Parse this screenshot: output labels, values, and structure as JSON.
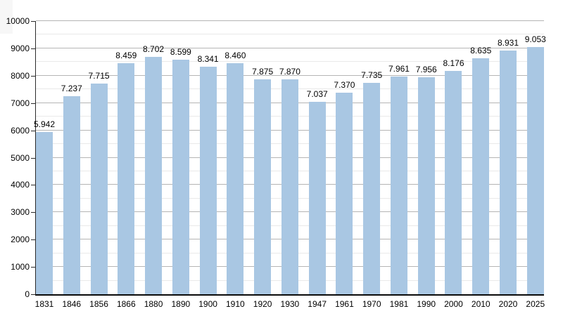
{
  "chart_data": {
    "type": "bar",
    "title": "",
    "xlabel": "",
    "ylabel": "",
    "categories": [
      "1831",
      "1846",
      "1856",
      "1866",
      "1880",
      "1890",
      "1900",
      "1910",
      "1920",
      "1930",
      "1947",
      "1961",
      "1970",
      "1981",
      "1990",
      "2000",
      "2010",
      "2020",
      "2025"
    ],
    "values": [
      5942,
      7237,
      7715,
      8459,
      8702,
      8599,
      8341,
      8460,
      7875,
      7870,
      7037,
      7370,
      7735,
      7961,
      7956,
      8176,
      8635,
      8931,
      9053
    ],
    "value_labels": [
      "5.942",
      "7.237",
      "7.715",
      "8.459",
      "8.702",
      "8.599",
      "8.341",
      "8.460",
      "7.875",
      "7.870",
      "7.037",
      "7.370",
      "7.735",
      "7.961",
      "7.956",
      "8.176",
      "8.635",
      "8.931",
      "9.053"
    ],
    "ylim": [
      0,
      10000
    ],
    "y_major_step": 1000,
    "y_minor_step": 500,
    "y_tick_labels": [
      "0",
      "1000",
      "2000",
      "3000",
      "4000",
      "5000",
      "6000",
      "7000",
      "8000",
      "9000",
      "10000"
    ],
    "grid": true,
    "legend": "none",
    "bar_color": "#a9c7e3",
    "major_grid_color": "#b5b5b5",
    "minor_grid_color": "#e9e9e9",
    "axis_color": "#0a0a0a",
    "label_color": "#000000"
  }
}
